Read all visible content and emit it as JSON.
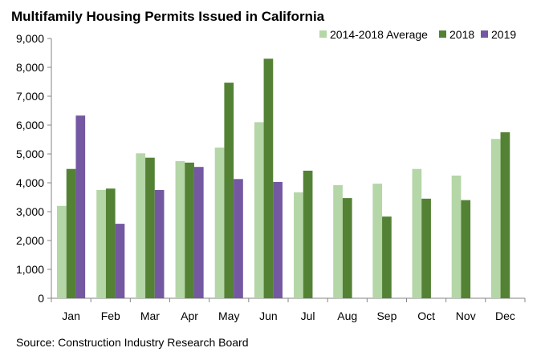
{
  "chart_data": {
    "type": "bar",
    "title": "Multifamily Housing Permits Issued in California",
    "source": "Source: Construction Industry Research Board",
    "categories": [
      "Jan",
      "Feb",
      "Mar",
      "Apr",
      "May",
      "Jun",
      "Jul",
      "Aug",
      "Sep",
      "Oct",
      "Nov",
      "Dec"
    ],
    "y_ticks": [
      "0",
      "1,000",
      "2,000",
      "3,000",
      "4,000",
      "5,000",
      "6,000",
      "7,000",
      "8,000",
      "9,000"
    ],
    "ylim": [
      0,
      9000
    ],
    "grid": false,
    "legend_position": "top-right",
    "series": [
      {
        "name": "2014-2018 Average",
        "color": "#b5d6a7",
        "values": [
          3200,
          3750,
          5020,
          4750,
          5220,
          6100,
          3670,
          3920,
          3970,
          4480,
          4250,
          5520
        ]
      },
      {
        "name": "2018",
        "color": "#548235",
        "values": [
          4480,
          3800,
          4870,
          4700,
          7470,
          8300,
          4420,
          3470,
          2830,
          3450,
          3400,
          5750
        ]
      },
      {
        "name": "2019",
        "color": "#7458a2",
        "values": [
          6330,
          2580,
          3750,
          4550,
          4130,
          4030,
          null,
          null,
          null,
          null,
          null,
          null
        ]
      }
    ]
  }
}
